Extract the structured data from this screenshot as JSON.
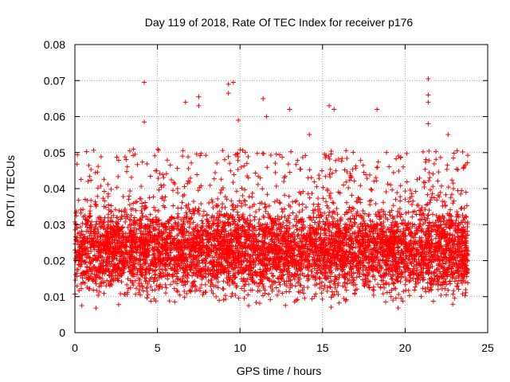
{
  "chart_data": {
    "type": "scatter",
    "title": "Day 119 of 2018, Rate Of TEC Index for receiver p176",
    "xlabel": "GPS time / hours",
    "ylabel": "ROTI / TECUs",
    "xlim": [
      0,
      25
    ],
    "ylim": [
      0,
      0.08
    ],
    "grid": true,
    "marker": "+",
    "marker_color": "#ff0000",
    "x_ticks": [
      0,
      5,
      10,
      15,
      20,
      25
    ],
    "x_tick_labels": [
      "0",
      "5",
      "10",
      "15",
      "20",
      "25"
    ],
    "y_ticks": [
      0,
      0.01,
      0.02,
      0.03,
      0.04,
      0.05,
      0.06,
      0.07,
      0.08
    ],
    "y_tick_labels": [
      "0",
      "0.01",
      "0.02",
      "0.03",
      "0.04",
      "0.05",
      "0.06",
      "0.07",
      "0.08"
    ],
    "x_data_range": [
      0,
      23.8
    ],
    "typical_band": [
      0.005,
      0.045
    ],
    "peaks": [
      {
        "x": 4.2,
        "y": 0.0695
      },
      {
        "x": 4.2,
        "y": 0.0585
      },
      {
        "x": 6.7,
        "y": 0.064
      },
      {
        "x": 7.5,
        "y": 0.0655
      },
      {
        "x": 7.5,
        "y": 0.063
      },
      {
        "x": 9.3,
        "y": 0.069
      },
      {
        "x": 9.6,
        "y": 0.0695
      },
      {
        "x": 9.3,
        "y": 0.0665
      },
      {
        "x": 9.9,
        "y": 0.059
      },
      {
        "x": 11.4,
        "y": 0.065
      },
      {
        "x": 11.6,
        "y": 0.06
      },
      {
        "x": 13.0,
        "y": 0.062
      },
      {
        "x": 14.2,
        "y": 0.055
      },
      {
        "x": 15.4,
        "y": 0.063
      },
      {
        "x": 15.7,
        "y": 0.062
      },
      {
        "x": 18.3,
        "y": 0.062
      },
      {
        "x": 21.4,
        "y": 0.0705
      },
      {
        "x": 21.4,
        "y": 0.066
      },
      {
        "x": 21.4,
        "y": 0.064
      },
      {
        "x": 21.4,
        "y": 0.058
      },
      {
        "x": 22.6,
        "y": 0.055
      }
    ]
  },
  "colors": {
    "points": "#ff0000",
    "grid": "#a0a0a0",
    "axis": "#000000"
  }
}
